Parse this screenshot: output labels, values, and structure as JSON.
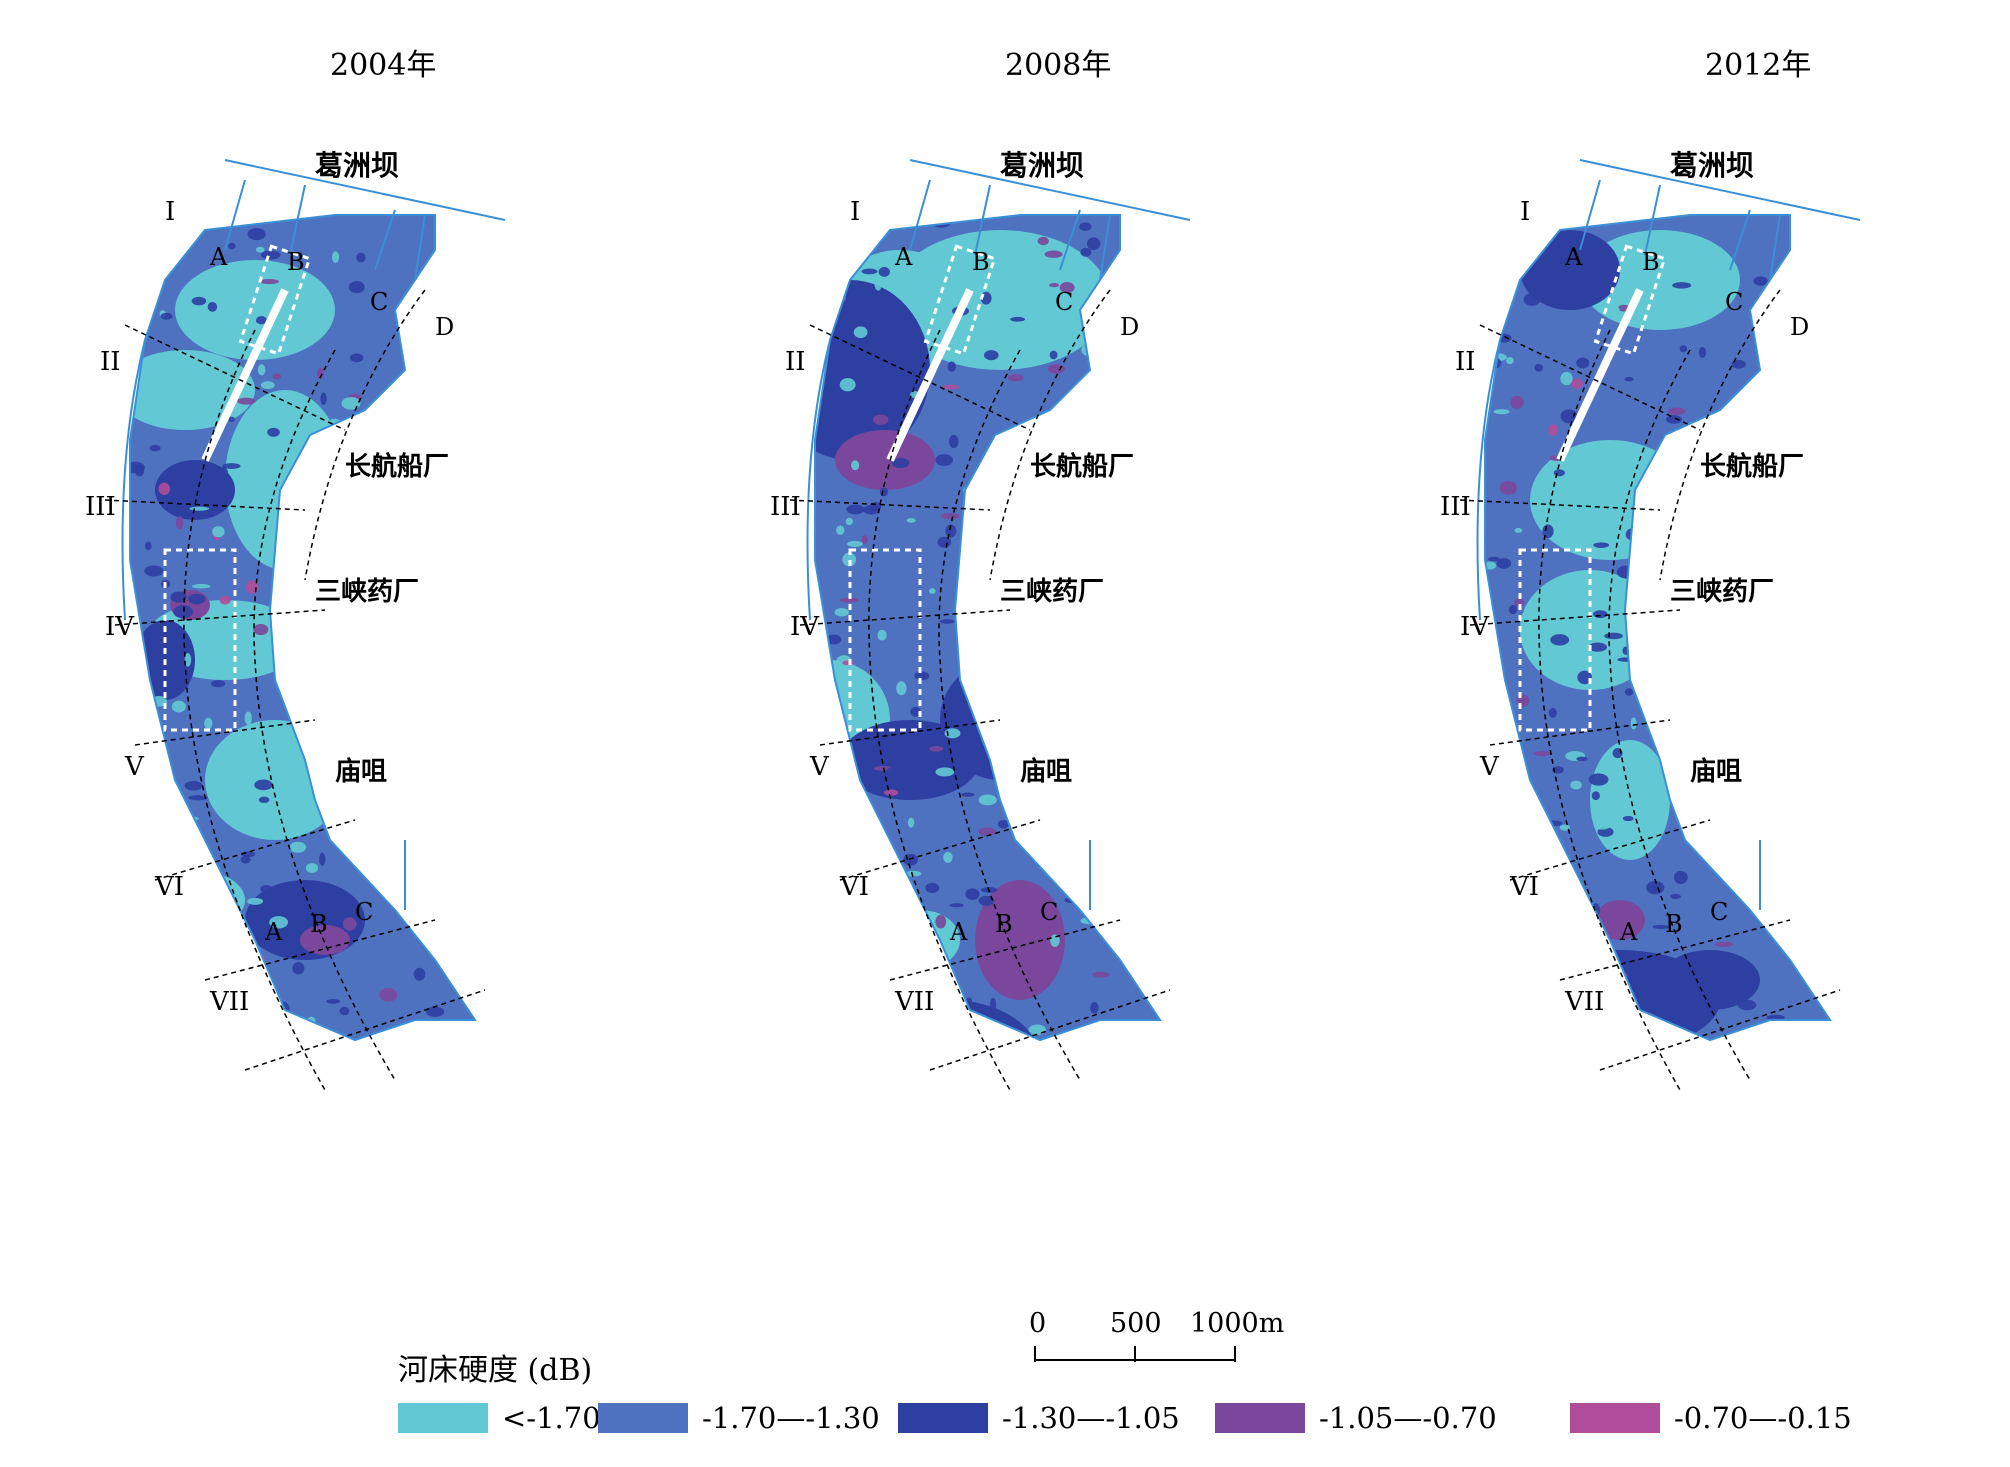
{
  "years": [
    "2004年",
    "2008年",
    "2012年"
  ],
  "map_labels": {
    "dam": "葛洲坝",
    "shipyard": "长航船厂",
    "pharma": "三峡药厂",
    "miaozui": "庙咀",
    "zones": [
      "I",
      "II",
      "III",
      "IV",
      "V",
      "VI",
      "VII"
    ],
    "upper_channels": [
      "A",
      "B",
      "C",
      "D"
    ],
    "lower_channels": [
      "A",
      "B",
      "C"
    ]
  },
  "scale_bar": {
    "labels": [
      "0",
      "500",
      "1000m"
    ]
  },
  "legend": {
    "title": "河床硬度 (dB)",
    "items": [
      {
        "label": "<-1.70",
        "color": "#62c9d4"
      },
      {
        "label": "-1.70—-1.30",
        "color": "#4f72c0"
      },
      {
        "label": "-1.30—-1.05",
        "color": "#2e3fa2"
      },
      {
        "label": "-1.05—-0.70",
        "color": "#7a479c"
      },
      {
        "label": "-0.70—-0.15",
        "color": "#b04d9a"
      }
    ]
  },
  "colors": {
    "river_line": "#3a8fd6",
    "dashed_line": "#000000",
    "study_box": "#ffffff"
  }
}
